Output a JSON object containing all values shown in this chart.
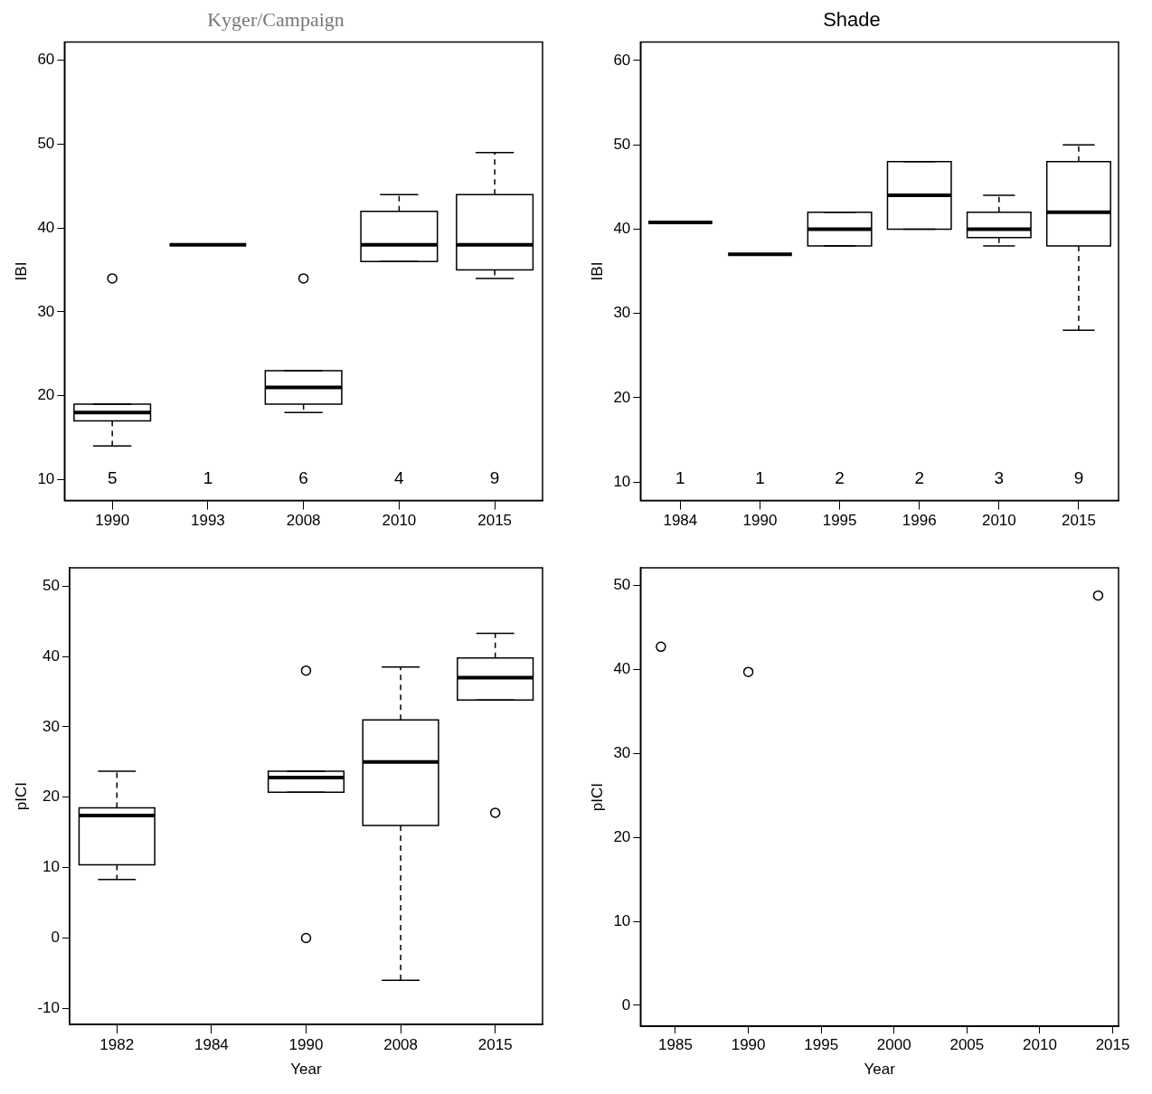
{
  "chart_data": [
    {
      "type": "box",
      "title": "Kyger/Campaign",
      "ylabel": "IBI",
      "categories": [
        "1990",
        "1993",
        "2008",
        "2010",
        "2015"
      ],
      "ylim": [
        7.5,
        62.2
      ],
      "yticks": [
        10,
        20,
        30,
        40,
        50,
        60
      ],
      "grid": false,
      "boxes": [
        {
          "low": 14,
          "q1": 17,
          "median": 18,
          "q3": 19,
          "high": 19,
          "outliers": [
            34
          ]
        },
        {
          "low": 38,
          "q1": 38,
          "median": 38,
          "q3": 38,
          "high": 38
        },
        {
          "low": 18,
          "q1": 19,
          "median": 21,
          "q3": 23,
          "high": 23,
          "outliers": [
            34
          ]
        },
        {
          "low": 36,
          "q1": 36,
          "median": 38,
          "q3": 42,
          "high": 44
        },
        {
          "low": 34,
          "q1": 35,
          "median": 38,
          "q3": 44,
          "high": 49
        }
      ],
      "annotations": [
        "5",
        "1",
        "6",
        "4",
        "9"
      ]
    },
    {
      "type": "box",
      "title": "Shade",
      "ylabel": "IBI",
      "categories": [
        "1984",
        "1990",
        "1995",
        "1996",
        "2010",
        "2015"
      ],
      "ylim": [
        7.8,
        62.2
      ],
      "yticks": [
        10,
        20,
        30,
        40,
        50,
        60
      ],
      "grid": false,
      "boxes": [
        {
          "low": 40.8,
          "q1": 40.8,
          "median": 40.8,
          "q3": 40.8,
          "high": 40.8
        },
        {
          "low": 37,
          "q1": 37,
          "median": 37,
          "q3": 37,
          "high": 37
        },
        {
          "low": 38,
          "q1": 38,
          "median": 40,
          "q3": 42,
          "high": 42
        },
        {
          "low": 40,
          "q1": 40,
          "median": 44,
          "q3": 48,
          "high": 48
        },
        {
          "low": 38,
          "q1": 39,
          "median": 40,
          "q3": 42,
          "high": 44
        },
        {
          "low": 28,
          "q1": 38,
          "median": 42,
          "q3": 48,
          "high": 50
        }
      ],
      "annotations": [
        "1",
        "1",
        "2",
        "2",
        "3",
        "9"
      ]
    },
    {
      "type": "box",
      "xlabel": "Year",
      "ylabel": "pICI",
      "categories": [
        "1982",
        "1984",
        "1990",
        "2008",
        "2015"
      ],
      "ylim": [
        -12.3,
        52.6
      ],
      "yticks": [
        -10,
        0,
        10,
        20,
        30,
        40,
        50
      ],
      "grid": false,
      "boxes": [
        {
          "low": 8.3,
          "q1": 10.4,
          "median": 17.4,
          "q3": 18.5,
          "high": 23.7
        },
        null,
        {
          "low": 20.7,
          "q1": 20.7,
          "median": 22.8,
          "q3": 23.7,
          "high": 23.7,
          "outliers": [
            38,
            0
          ]
        },
        {
          "low": -6,
          "q1": 16,
          "median": 25,
          "q3": 31,
          "high": 38.5
        },
        {
          "low": 33.8,
          "q1": 33.8,
          "median": 37,
          "q3": 39.8,
          "high": 43.3,
          "outliers": [
            17.8
          ]
        }
      ]
    },
    {
      "type": "scatter",
      "xlabel": "Year",
      "ylabel": "pICI",
      "x": [
        1984,
        1990,
        2014
      ],
      "values": [
        42.7,
        39.7,
        48.8
      ],
      "marker": "circle",
      "xlim": [
        1982.6,
        2015.4
      ],
      "xticks": [
        1985,
        1990,
        1995,
        2000,
        2005,
        2010,
        2015
      ],
      "ylim": [
        -2.5,
        52.1
      ],
      "yticks": [
        0,
        10,
        20,
        30,
        40,
        50
      ],
      "grid": false
    }
  ]
}
